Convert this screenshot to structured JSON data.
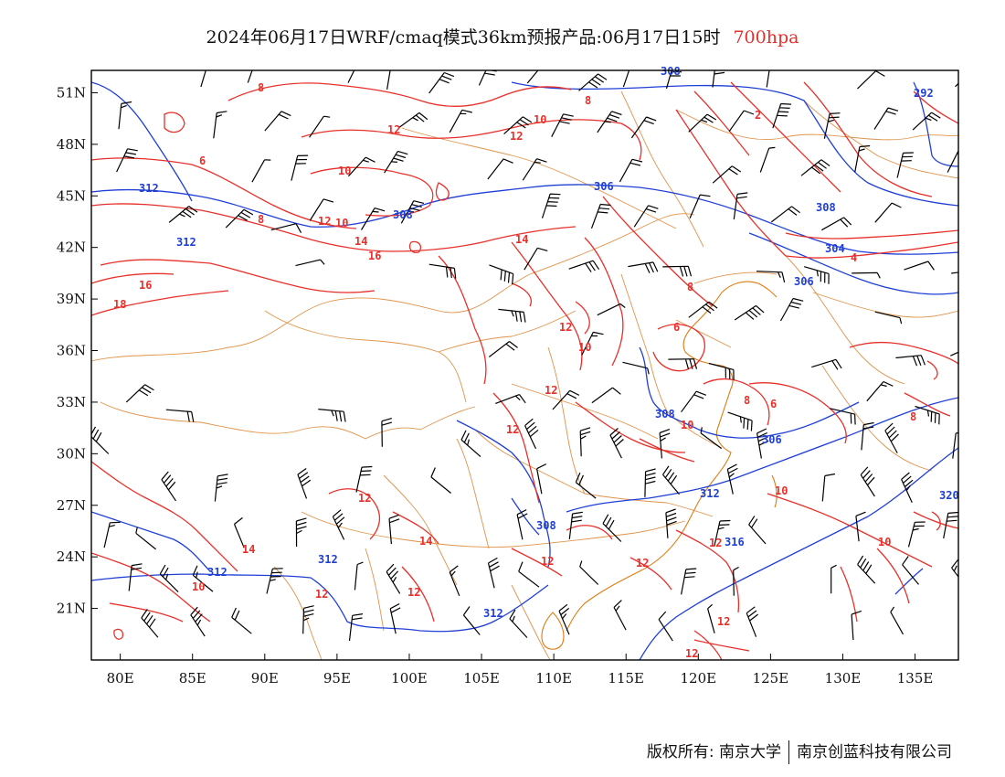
{
  "title": {
    "main": "2024年06月17日WRF/cmaq模式36km预报产品:06月17日15时",
    "level": "700hpa"
  },
  "axes": {
    "lat_labels": [
      "51N",
      "48N",
      "45N",
      "42N",
      "39N",
      "36N",
      "33N",
      "30N",
      "27N",
      "24N",
      "21N"
    ],
    "lat_values": [
      51,
      48,
      45,
      42,
      39,
      36,
      33,
      30,
      27,
      24,
      21
    ],
    "lon_labels": [
      "80E",
      "85E",
      "90E",
      "95E",
      "100E",
      "105E",
      "110E",
      "115E",
      "120E",
      "125E",
      "130E",
      "135E"
    ],
    "lon_values": [
      80,
      85,
      90,
      95,
      100,
      105,
      110,
      115,
      120,
      125,
      130,
      135
    ],
    "lon_range": [
      78,
      138
    ],
    "lat_range": [
      18,
      52.3
    ]
  },
  "colors": {
    "temperature": "#e8302a",
    "geopotential": "#1f3fd6",
    "boundary": "#e0934a",
    "coast": "#e07a10",
    "wind": "#000000"
  },
  "height_labels": [
    "312",
    "308",
    "306",
    "312",
    "312",
    "308",
    "304",
    "306",
    "308",
    "308",
    "306",
    "312",
    "312",
    "316",
    "312",
    "308",
    "292",
    "320"
  ],
  "temp_labels": [
    "8",
    "12",
    "10",
    "12",
    "10",
    "6",
    "8",
    "12",
    "10",
    "14",
    "16",
    "16",
    "18",
    "14",
    "12",
    "10",
    "12",
    "8",
    "6",
    "12",
    "10",
    "6",
    "8",
    "12",
    "10",
    "14",
    "12",
    "14",
    "12",
    "12",
    "12",
    "12",
    "10",
    "10",
    "12",
    "12",
    "2",
    "4",
    "8",
    "8"
  ],
  "footer": {
    "left": "版权所有: 南京大学",
    "right": "南京创蓝科技有限公司"
  }
}
